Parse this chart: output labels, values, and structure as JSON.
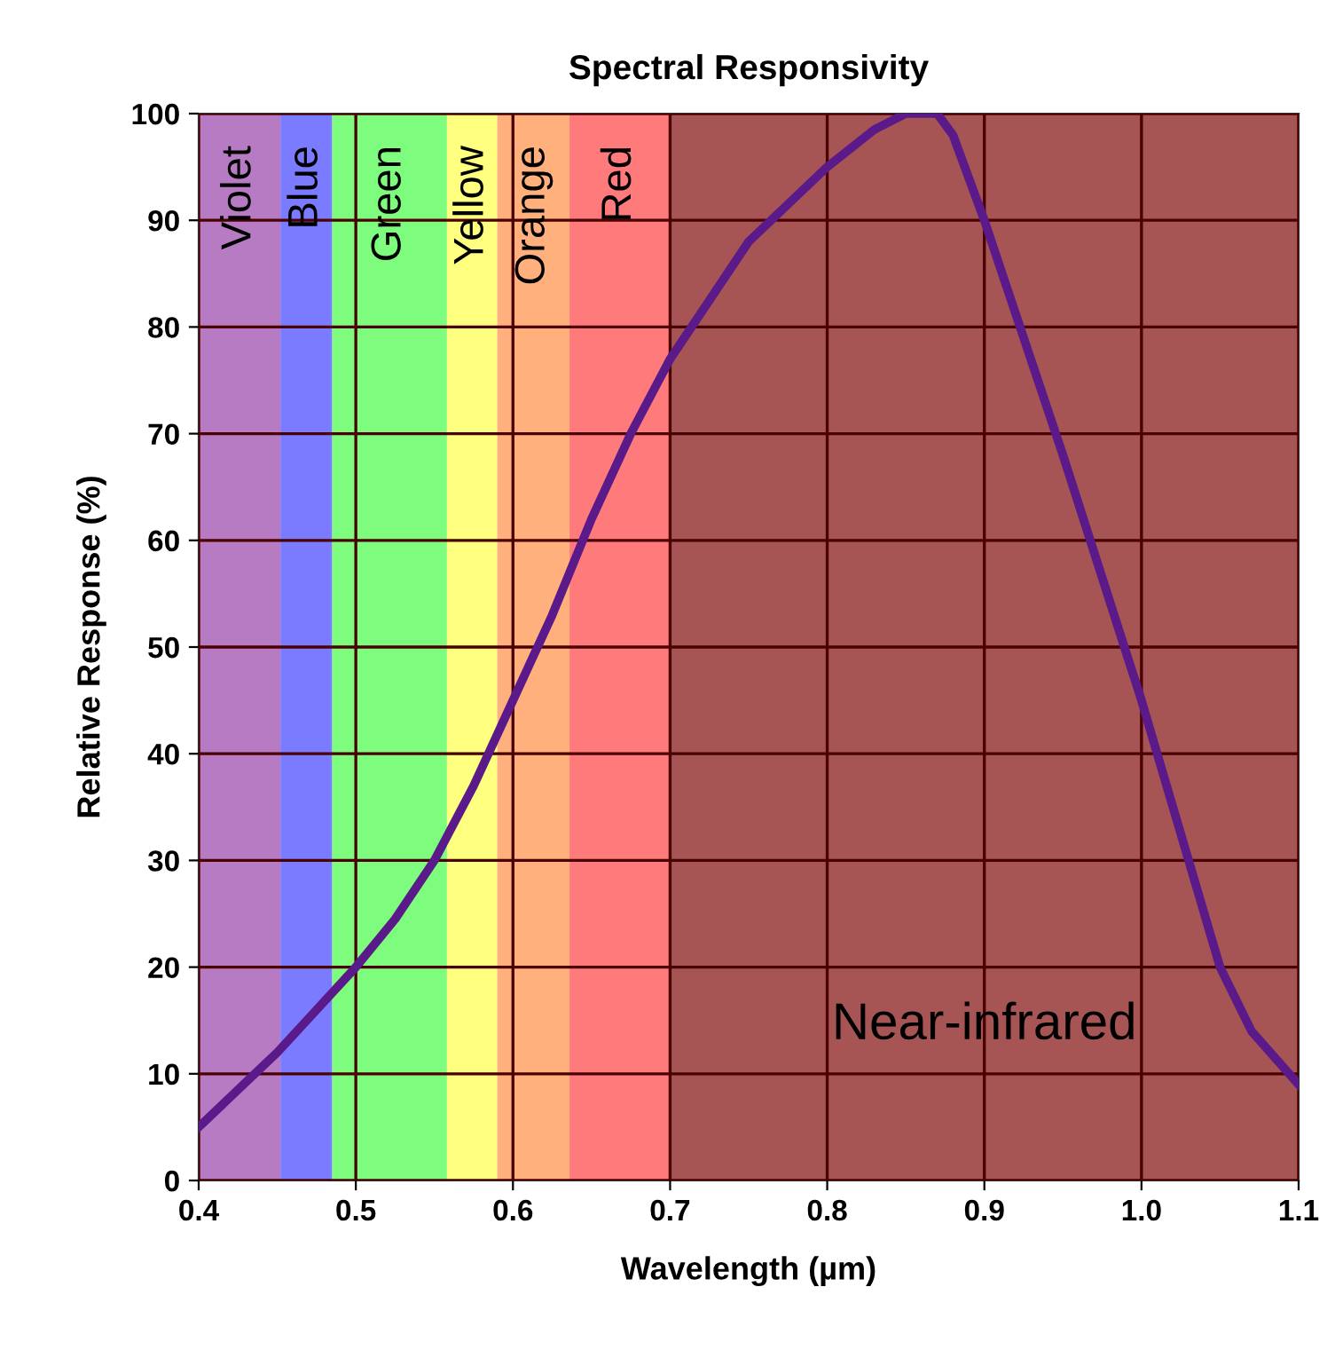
{
  "chart_data": {
    "type": "line",
    "title": "Spectral Responsivity",
    "xlabel": "Wavelength (µm)",
    "ylabel": "Relative Response (%)",
    "xlim": [
      0.4,
      1.1
    ],
    "ylim": [
      0,
      100
    ],
    "xticks": [
      0.4,
      0.5,
      0.6,
      0.7,
      0.8,
      0.9,
      {
        "value": 1.0,
        "label": "1.0"
      },
      1.1
    ],
    "yticks": [
      0,
      10,
      20,
      30,
      40,
      50,
      60,
      70,
      80,
      90,
      100
    ],
    "grid": true,
    "series": [
      {
        "color": "#5a1a8a",
        "x": [
          0.4,
          0.425,
          0.45,
          0.475,
          0.5,
          0.525,
          0.55,
          0.575,
          0.6,
          0.625,
          0.65,
          0.675,
          0.7,
          0.75,
          0.8,
          0.83,
          0.85,
          0.87,
          0.88,
          0.9,
          0.95,
          1.0,
          1.03,
          1.05,
          1.07,
          1.1
        ],
        "values": [
          5,
          8.5,
          12,
          16,
          20,
          24.5,
          30,
          37,
          45,
          53,
          62,
          70,
          77,
          88,
          95,
          98.5,
          100,
          100,
          98,
          90,
          68,
          45,
          30,
          20,
          14,
          9
        ]
      }
    ],
    "bands": [
      {
        "axis": "x",
        "from": 0.4,
        "to": 0.452,
        "label": "Violet",
        "color": "#b77bc4"
      },
      {
        "axis": "x",
        "from": 0.452,
        "to": 0.485,
        "label": "Blue",
        "color": "#7b7bff"
      },
      {
        "axis": "x",
        "from": 0.485,
        "to": 0.558,
        "label": "Green",
        "color": "#7dfc7d"
      },
      {
        "axis": "x",
        "from": 0.558,
        "to": 0.59,
        "label": "Yellow",
        "color": "#ffff80"
      },
      {
        "axis": "x",
        "from": 0.59,
        "to": 0.636,
        "label": "Orange",
        "color": "#ffb07d"
      },
      {
        "axis": "x",
        "from": 0.636,
        "to": 0.7,
        "label": "Red",
        "color": "#ff7b7b"
      },
      {
        "axis": "x",
        "from": 0.7,
        "to": 1.1,
        "label": "Near-infrared",
        "color": "#a65454"
      }
    ]
  }
}
